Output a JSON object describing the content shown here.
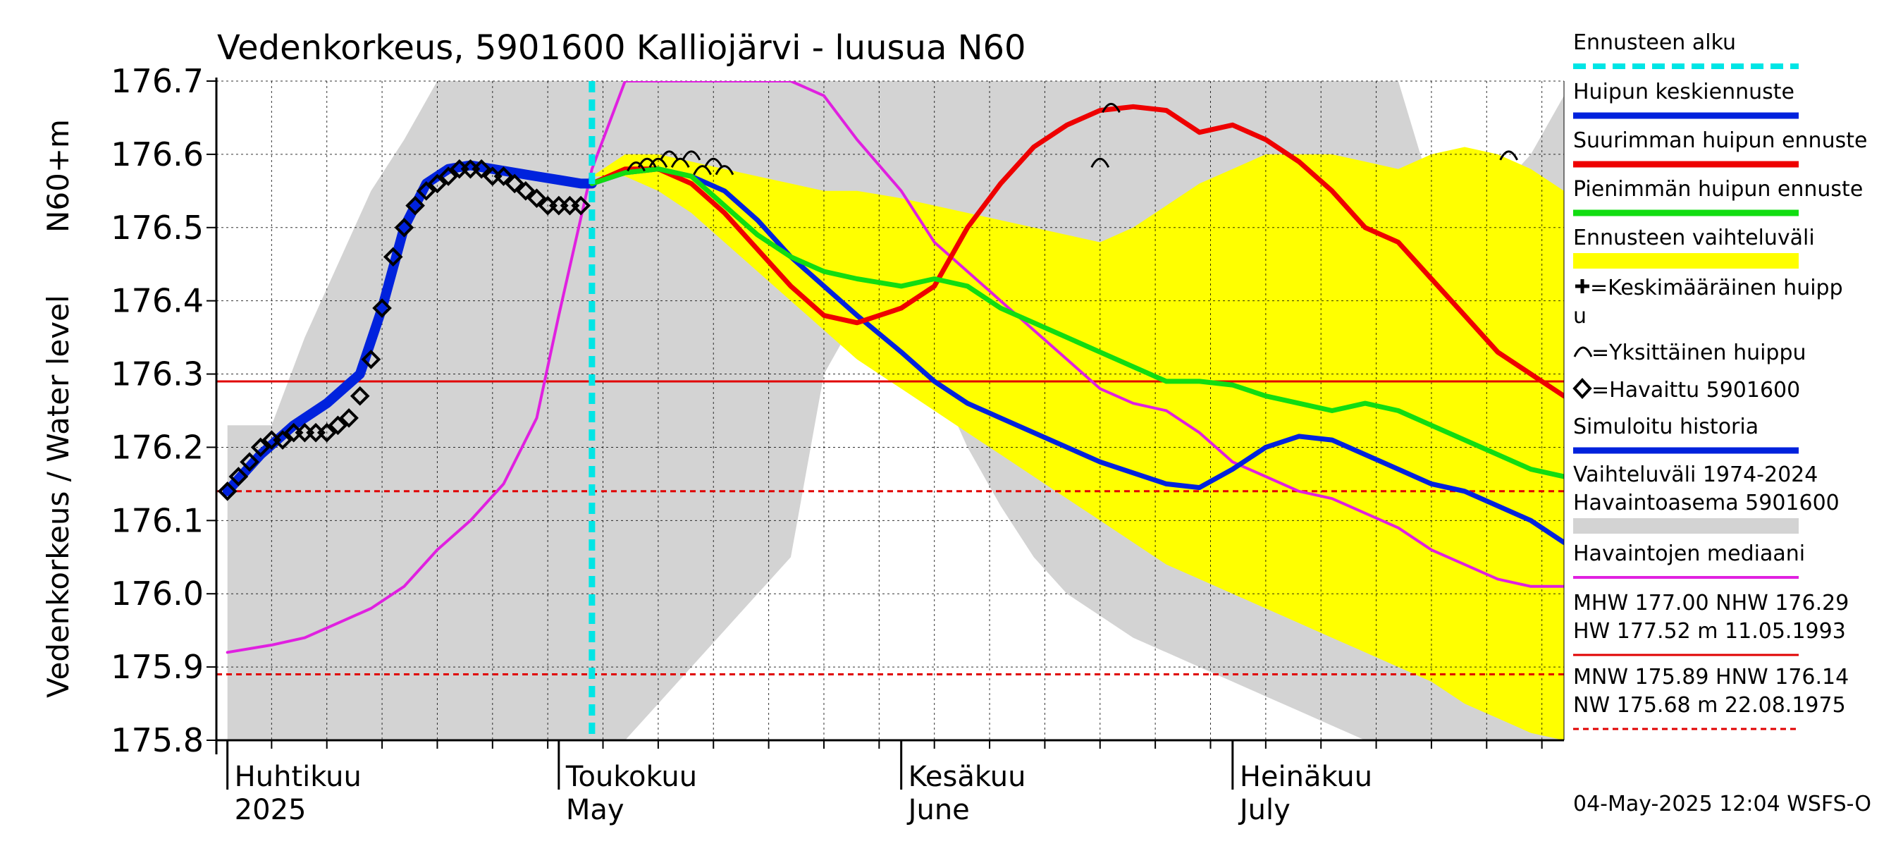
{
  "chart_data": {
    "type": "line",
    "title": "Vedenkorkeus, 5901600 Kalliojärvi - luusua N60",
    "ylabel": "Vedenkorkeus / Water level",
    "yunit": "N60+m",
    "ylim": [
      175.8,
      176.7
    ],
    "yticks": [
      "175.8",
      "175.9",
      "176.0",
      "176.1",
      "176.2",
      "176.3",
      "176.4",
      "176.5",
      "176.6",
      "176.7"
    ],
    "xlim": [
      "2025-03-31",
      "2025-07-31"
    ],
    "grid": true,
    "month_labels": [
      {
        "date": "2025-04-01",
        "fi": "Huhtikuu",
        "en": "2025"
      },
      {
        "date": "2025-05-01",
        "fi": "Toukokuu",
        "en": "May"
      },
      {
        "date": "2025-06-01",
        "fi": "Kesäkuu",
        "en": "June"
      },
      {
        "date": "2025-07-01",
        "fi": "Heinäkuu",
        "en": "July"
      }
    ],
    "forecast_start": "2025-05-04",
    "reference_lines": [
      {
        "name": "NHW",
        "value": 176.29,
        "color": "#e00000",
        "style": "solid"
      },
      {
        "name": "HNW",
        "value": 176.14,
        "color": "#e00000",
        "style": "dashed"
      },
      {
        "name": "MNW",
        "value": 175.89,
        "color": "#e00000",
        "style": "dashed"
      }
    ],
    "history_band": {
      "x": [
        "2025-04-01",
        "2025-04-05",
        "2025-04-08",
        "2025-04-11",
        "2025-04-14",
        "2025-04-17",
        "2025-04-20",
        "2025-04-23",
        "2025-04-26",
        "2025-04-29",
        "2025-05-01",
        "2025-05-04",
        "2025-05-07",
        "2025-05-10",
        "2025-05-13",
        "2025-05-16",
        "2025-05-19",
        "2025-05-22",
        "2025-05-25",
        "2025-05-28",
        "2025-06-01",
        "2025-06-04",
        "2025-06-07",
        "2025-06-10",
        "2025-06-13",
        "2025-06-16",
        "2025-06-19",
        "2025-06-22",
        "2025-06-25",
        "2025-06-28",
        "2025-07-01",
        "2025-07-04",
        "2025-07-07",
        "2025-07-10",
        "2025-07-13",
        "2025-07-16",
        "2025-07-19",
        "2025-07-22",
        "2025-07-25",
        "2025-07-28",
        "2025-07-31"
      ],
      "upper": [
        176.23,
        176.23,
        176.35,
        176.45,
        176.55,
        176.62,
        176.7,
        176.7,
        176.7,
        176.7,
        176.7,
        176.7,
        176.7,
        176.7,
        176.7,
        176.7,
        176.7,
        176.7,
        176.7,
        176.7,
        176.7,
        176.7,
        176.7,
        176.7,
        176.7,
        176.7,
        176.7,
        176.7,
        176.7,
        176.7,
        176.7,
        176.7,
        176.7,
        176.7,
        176.7,
        176.7,
        176.55,
        176.45,
        176.55,
        176.6,
        176.68
      ],
      "lower": [
        175.8,
        175.8,
        175.8,
        175.8,
        175.8,
        175.8,
        175.8,
        175.8,
        175.8,
        175.8,
        175.8,
        175.8,
        175.8,
        175.85,
        175.9,
        175.95,
        176.0,
        176.05,
        176.3,
        176.38,
        176.35,
        176.3,
        176.2,
        176.12,
        176.05,
        176.0,
        175.97,
        175.94,
        175.92,
        175.9,
        175.88,
        175.86,
        175.84,
        175.82,
        175.8,
        175.8,
        175.8,
        175.8,
        175.8,
        175.8,
        175.8
      ]
    },
    "forecast_band": {
      "x": [
        "2025-05-04",
        "2025-05-07",
        "2025-05-10",
        "2025-05-13",
        "2025-05-16",
        "2025-05-19",
        "2025-05-22",
        "2025-05-25",
        "2025-05-28",
        "2025-06-01",
        "2025-06-04",
        "2025-06-07",
        "2025-06-10",
        "2025-06-13",
        "2025-06-16",
        "2025-06-19",
        "2025-06-22",
        "2025-06-25",
        "2025-06-28",
        "2025-07-01",
        "2025-07-04",
        "2025-07-07",
        "2025-07-10",
        "2025-07-13",
        "2025-07-16",
        "2025-07-19",
        "2025-07-22",
        "2025-07-25",
        "2025-07-28",
        "2025-07-31"
      ],
      "upper": [
        176.57,
        176.6,
        176.6,
        176.59,
        176.58,
        176.57,
        176.56,
        176.55,
        176.55,
        176.54,
        176.53,
        176.52,
        176.51,
        176.5,
        176.49,
        176.48,
        176.5,
        176.53,
        176.56,
        176.58,
        176.6,
        176.6,
        176.6,
        176.59,
        176.58,
        176.6,
        176.61,
        176.6,
        176.58,
        176.55
      ],
      "lower": [
        176.57,
        176.57,
        176.55,
        176.52,
        176.48,
        176.44,
        176.4,
        176.36,
        176.32,
        176.28,
        176.25,
        176.22,
        176.19,
        176.16,
        176.13,
        176.1,
        176.07,
        176.04,
        176.02,
        176.0,
        175.98,
        175.96,
        175.94,
        175.92,
        175.9,
        175.88,
        175.85,
        175.83,
        175.81,
        175.8
      ]
    },
    "series": [
      {
        "name": "Havaintojen mediaani",
        "color": "#e020e0",
        "x": [
          "2025-04-01",
          "2025-04-05",
          "2025-04-08",
          "2025-04-11",
          "2025-04-14",
          "2025-04-17",
          "2025-04-20",
          "2025-04-23",
          "2025-04-26",
          "2025-04-29",
          "2025-05-01",
          "2025-05-04",
          "2025-05-07",
          "2025-05-10",
          "2025-05-13",
          "2025-05-16",
          "2025-05-19",
          "2025-05-22",
          "2025-05-25",
          "2025-05-28",
          "2025-06-01",
          "2025-06-04",
          "2025-06-07",
          "2025-06-10",
          "2025-06-13",
          "2025-06-16",
          "2025-06-19",
          "2025-06-22",
          "2025-06-25",
          "2025-06-28",
          "2025-07-01",
          "2025-07-04",
          "2025-07-07",
          "2025-07-10",
          "2025-07-13",
          "2025-07-16",
          "2025-07-19",
          "2025-07-22",
          "2025-07-25",
          "2025-07-28",
          "2025-07-31"
        ],
        "y": [
          175.92,
          175.93,
          175.94,
          175.96,
          175.98,
          176.01,
          176.06,
          176.1,
          176.15,
          176.24,
          176.38,
          176.58,
          176.7,
          176.7,
          176.7,
          176.7,
          176.7,
          176.7,
          176.68,
          176.62,
          176.55,
          176.48,
          176.44,
          176.4,
          176.36,
          176.32,
          176.28,
          176.26,
          176.25,
          176.22,
          176.18,
          176.16,
          176.14,
          176.13,
          176.11,
          176.09,
          176.06,
          176.04,
          176.02,
          176.01,
          176.01
        ]
      },
      {
        "name": "Simuloitu historia",
        "color": "#0022dd",
        "x": [
          "2025-04-01",
          "2025-04-04",
          "2025-04-07",
          "2025-04-10",
          "2025-04-13",
          "2025-04-15",
          "2025-04-17",
          "2025-04-19",
          "2025-04-21",
          "2025-04-23",
          "2025-04-25",
          "2025-04-27",
          "2025-04-29",
          "2025-05-01",
          "2025-05-03",
          "2025-05-04"
        ],
        "y": [
          176.14,
          176.19,
          176.23,
          176.26,
          176.3,
          176.39,
          176.5,
          176.56,
          176.58,
          176.585,
          176.58,
          176.575,
          176.57,
          176.565,
          176.56,
          176.56
        ]
      },
      {
        "name": "Huipun keskiennuste",
        "color": "#0022dd",
        "x": [
          "2025-05-04",
          "2025-05-07",
          "2025-05-10",
          "2025-05-13",
          "2025-05-16",
          "2025-05-19",
          "2025-05-22",
          "2025-05-25",
          "2025-05-28",
          "2025-06-01",
          "2025-06-04",
          "2025-06-07",
          "2025-06-10",
          "2025-06-13",
          "2025-06-16",
          "2025-06-19",
          "2025-06-22",
          "2025-06-25",
          "2025-06-28",
          "2025-07-01",
          "2025-07-04",
          "2025-07-07",
          "2025-07-10",
          "2025-07-13",
          "2025-07-16",
          "2025-07-19",
          "2025-07-22",
          "2025-07-25",
          "2025-07-28",
          "2025-07-31"
        ],
        "y": [
          176.56,
          176.575,
          176.58,
          176.57,
          176.55,
          176.51,
          176.46,
          176.42,
          176.38,
          176.33,
          176.29,
          176.26,
          176.24,
          176.22,
          176.2,
          176.18,
          176.165,
          176.15,
          176.145,
          176.17,
          176.2,
          176.215,
          176.21,
          176.19,
          176.17,
          176.15,
          176.14,
          176.12,
          176.1,
          176.07
        ]
      },
      {
        "name": "Suurimman huipun ennuste",
        "color": "#ee0000",
        "x": [
          "2025-05-04",
          "2025-05-07",
          "2025-05-10",
          "2025-05-13",
          "2025-05-16",
          "2025-05-19",
          "2025-05-22",
          "2025-05-25",
          "2025-05-28",
          "2025-06-01",
          "2025-06-04",
          "2025-06-07",
          "2025-06-10",
          "2025-06-13",
          "2025-06-16",
          "2025-06-19",
          "2025-06-22",
          "2025-06-25",
          "2025-06-28",
          "2025-07-01",
          "2025-07-04",
          "2025-07-07",
          "2025-07-10",
          "2025-07-13",
          "2025-07-16",
          "2025-07-19",
          "2025-07-22",
          "2025-07-25",
          "2025-07-28",
          "2025-07-31"
        ],
        "y": [
          176.56,
          176.58,
          176.58,
          176.56,
          176.52,
          176.47,
          176.42,
          176.38,
          176.37,
          176.39,
          176.42,
          176.5,
          176.56,
          176.61,
          176.64,
          176.66,
          176.665,
          176.66,
          176.63,
          176.64,
          176.62,
          176.59,
          176.55,
          176.5,
          176.48,
          176.43,
          176.38,
          176.33,
          176.3,
          176.27
        ]
      },
      {
        "name": "Pienimmän huipun ennuste",
        "color": "#11dd11",
        "x": [
          "2025-05-04",
          "2025-05-07",
          "2025-05-10",
          "2025-05-13",
          "2025-05-16",
          "2025-05-19",
          "2025-05-22",
          "2025-05-25",
          "2025-05-28",
          "2025-06-01",
          "2025-06-04",
          "2025-06-07",
          "2025-06-10",
          "2025-06-13",
          "2025-06-16",
          "2025-06-19",
          "2025-06-22",
          "2025-06-25",
          "2025-06-28",
          "2025-07-01",
          "2025-07-04",
          "2025-07-07",
          "2025-07-10",
          "2025-07-13",
          "2025-07-16",
          "2025-07-19",
          "2025-07-22",
          "2025-07-25",
          "2025-07-28",
          "2025-07-31"
        ],
        "y": [
          176.56,
          176.575,
          176.58,
          176.57,
          176.53,
          176.49,
          176.46,
          176.44,
          176.43,
          176.42,
          176.43,
          176.42,
          176.39,
          176.37,
          176.35,
          176.33,
          176.31,
          176.29,
          176.29,
          176.285,
          176.27,
          176.26,
          176.25,
          176.26,
          176.25,
          176.23,
          176.21,
          176.19,
          176.17,
          176.16
        ]
      }
    ],
    "observed": {
      "name": "Havaittu 5901600",
      "x": [
        "2025-04-01",
        "2025-04-02",
        "2025-04-03",
        "2025-04-04",
        "2025-04-05",
        "2025-04-06",
        "2025-04-07",
        "2025-04-08",
        "2025-04-09",
        "2025-04-10",
        "2025-04-11",
        "2025-04-12",
        "2025-04-13",
        "2025-04-14",
        "2025-04-15",
        "2025-04-16",
        "2025-04-17",
        "2025-04-18",
        "2025-04-19",
        "2025-04-20",
        "2025-04-21",
        "2025-04-22",
        "2025-04-23",
        "2025-04-24",
        "2025-04-25",
        "2025-04-26",
        "2025-04-27",
        "2025-04-28",
        "2025-04-29",
        "2025-04-30",
        "2025-05-01",
        "2025-05-02",
        "2025-05-03"
      ],
      "y": [
        176.14,
        176.16,
        176.18,
        176.2,
        176.21,
        176.21,
        176.22,
        176.22,
        176.22,
        176.22,
        176.23,
        176.24,
        176.27,
        176.32,
        176.39,
        176.46,
        176.5,
        176.53,
        176.55,
        176.56,
        176.57,
        176.58,
        176.58,
        176.58,
        176.57,
        176.57,
        176.56,
        176.55,
        176.54,
        176.53,
        176.53,
        176.53,
        176.53
      ]
    },
    "peak_marks": {
      "name": "Yksittäinen huippu",
      "x": [
        "2025-05-08",
        "2025-05-09",
        "2025-05-10",
        "2025-05-11",
        "2025-05-12",
        "2025-05-13",
        "2025-05-14",
        "2025-05-15",
        "2025-05-16",
        "2025-06-19",
        "2025-06-20",
        "2025-07-26"
      ],
      "y": [
        176.585,
        176.59,
        176.59,
        176.6,
        176.59,
        176.6,
        176.58,
        176.59,
        176.58,
        176.59,
        176.665,
        176.6
      ]
    },
    "legend": [
      {
        "label": "Ennusteen alku",
        "color": "#00e5e5",
        "style": "dashed"
      },
      {
        "label": "Huipun keskiennuste",
        "color": "#0022dd",
        "style": "thick"
      },
      {
        "label": "Suurimman huipun ennuste",
        "color": "#ee0000",
        "style": "thick"
      },
      {
        "label": "Pienimmän huipun ennuste",
        "color": "#11dd11",
        "style": "thick"
      },
      {
        "label": "Ennusteen vaihteluväli",
        "color": "#ffff00",
        "style": "band"
      },
      {
        "label": "=Keskimääräinen huipp",
        "label2": "u",
        "symbol": "plus"
      },
      {
        "label": "=Yksittäinen huippu",
        "symbol": "arc"
      },
      {
        "label": "=Havaittu 5901600",
        "symbol": "diamond"
      },
      {
        "label": "Simuloitu historia",
        "color": "#0022dd",
        "style": "thick"
      },
      {
        "label": "Vaihteluväli 1974-2024",
        "label2": " Havaintoasema 5901600",
        "color": "#d3d3d3",
        "style": "band"
      },
      {
        "label": "Havaintojen mediaani",
        "color": "#e020e0",
        "style": "thin"
      },
      {
        "label": "MHW 177.00 NHW 176.29",
        "label2": "HW 177.52 m 11.05.1993",
        "color": "#e00000",
        "style": "solid"
      },
      {
        "label": "MNW 175.89 HNW 176.14",
        "label2": "NW 175.68 m 22.08.1975",
        "color": "#e00000",
        "style": "dashed"
      }
    ],
    "legend_placement": "right",
    "footer": "04-May-2025 12:04 WSFS-O"
  }
}
